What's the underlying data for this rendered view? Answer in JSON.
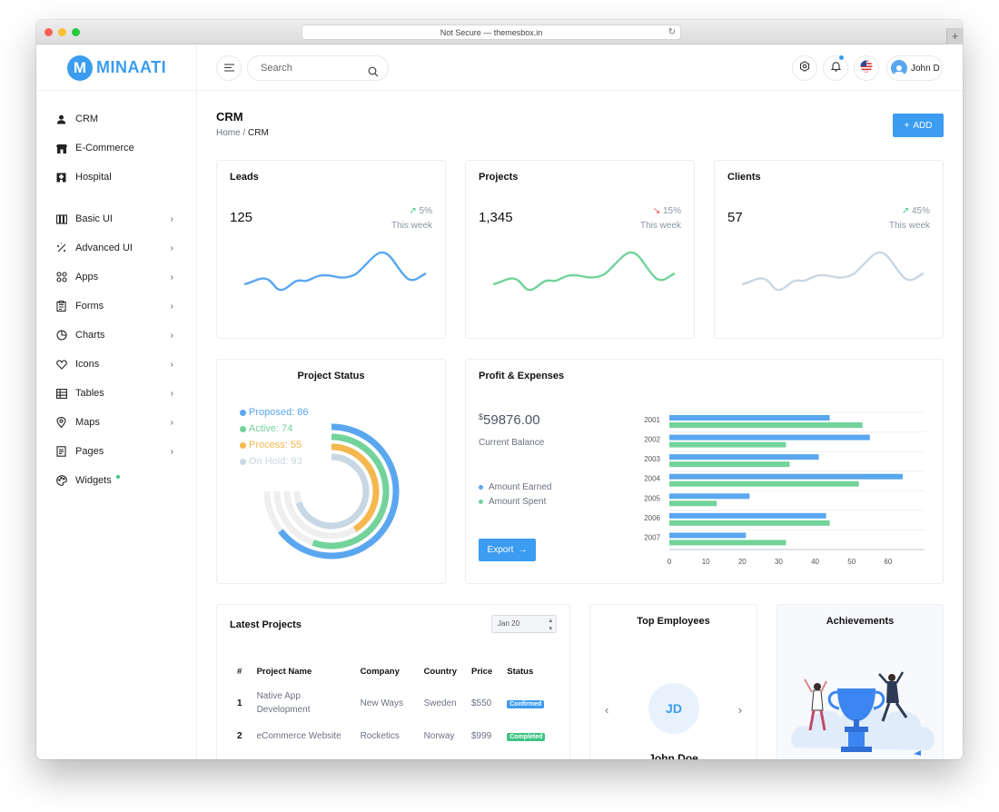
{
  "browser": {
    "url": "Not Secure — themesbox.in"
  },
  "brand": {
    "logo_letter": "M",
    "name": "MINAATI",
    "color": "#3b9cf0"
  },
  "sidebar": {
    "items": [
      {
        "label": "CRM",
        "icon": "user-icon"
      },
      {
        "label": "E-Commerce",
        "icon": "store-icon"
      },
      {
        "label": "Hospital",
        "icon": "hospital-icon"
      },
      {
        "label": "Basic UI",
        "icon": "basic-ui-icon"
      },
      {
        "label": "Advanced UI",
        "icon": "advanced-ui-icon"
      },
      {
        "label": "Apps",
        "icon": "apps-icon"
      },
      {
        "label": "Forms",
        "icon": "forms-icon"
      },
      {
        "label": "Charts",
        "icon": "charts-icon"
      },
      {
        "label": "Icons",
        "icon": "heart-icon"
      },
      {
        "label": "Tables",
        "icon": "table-icon"
      },
      {
        "label": "Maps",
        "icon": "map-pin-icon"
      },
      {
        "label": "Pages",
        "icon": "pages-icon"
      },
      {
        "label": "Widgets",
        "icon": "palette-icon"
      }
    ]
  },
  "topbar": {
    "search_placeholder": "Search",
    "user_name": "John D"
  },
  "page": {
    "title": "CRM",
    "breadcrumb_home": "Home",
    "breadcrumb_sep": "/",
    "breadcrumb_current": "CRM",
    "add_label": "ADD"
  },
  "stats": [
    {
      "title": "Leads",
      "value": "125",
      "change": "5%",
      "trend": "up",
      "period": "This week",
      "color": "#5aa7f0"
    },
    {
      "title": "Projects",
      "value": "1,345",
      "change": "15%",
      "trend": "down",
      "period": "This week",
      "color": "#72d39b"
    },
    {
      "title": "Clients",
      "value": "57",
      "change": "45%",
      "trend": "up",
      "period": "This week",
      "color": "#c9d7e4"
    }
  ],
  "project_status": {
    "title": "Project Status",
    "items": [
      {
        "label": "Proposed: 86",
        "value": 86,
        "color": "#5aa7f0"
      },
      {
        "label": "Active: 74",
        "value": 74,
        "color": "#72d39b"
      },
      {
        "label": "Process: 55",
        "value": 55,
        "color": "#f5b84e"
      },
      {
        "label": "On Hold: 93",
        "value": 93,
        "color": "#c9d7e4"
      }
    ]
  },
  "profit_expenses": {
    "title": "Profit & Expenses",
    "currency": "$",
    "balance": "59876.00",
    "balance_label": "Current Balance",
    "legend_earned": "Amount Earned",
    "legend_spent": "Amount Spent",
    "export_label": "Export"
  },
  "chart_data": {
    "type": "bar",
    "orientation": "horizontal",
    "categories": [
      "2001",
      "2002",
      "2003",
      "2004",
      "2005",
      "2006",
      "2007"
    ],
    "series": [
      {
        "name": "Amount Earned",
        "color": "#5aa7f0",
        "values": [
          44,
          55,
          41,
          64,
          22,
          43,
          21
        ]
      },
      {
        "name": "Amount Spent",
        "color": "#72d39b",
        "values": [
          53,
          32,
          33,
          52,
          13,
          44,
          32
        ]
      }
    ],
    "xticks": [
      0,
      10,
      20,
      30,
      40,
      50,
      60
    ],
    "xlim": [
      0,
      70
    ],
    "grid": true
  },
  "latest_projects": {
    "title": "Latest Projects",
    "filter": "Jan 20",
    "columns": [
      "#",
      "Project Name",
      "Company",
      "Country",
      "Price",
      "Status"
    ],
    "rows": [
      {
        "num": "1",
        "name": "Native App Development",
        "company": "New Ways",
        "country": "Sweden",
        "price": "$550",
        "status": "Confirmed",
        "status_color": "#3b9cf0"
      },
      {
        "num": "2",
        "name": "eCommerce Website",
        "company": "Rocketics",
        "country": "Norway",
        "price": "$999",
        "status": "Completed",
        "status_color": "#3ec483"
      }
    ]
  },
  "top_employees": {
    "title": "Top Employees",
    "initials": "JD",
    "name": "John Doe"
  },
  "achievements": {
    "title": "Achievements"
  }
}
